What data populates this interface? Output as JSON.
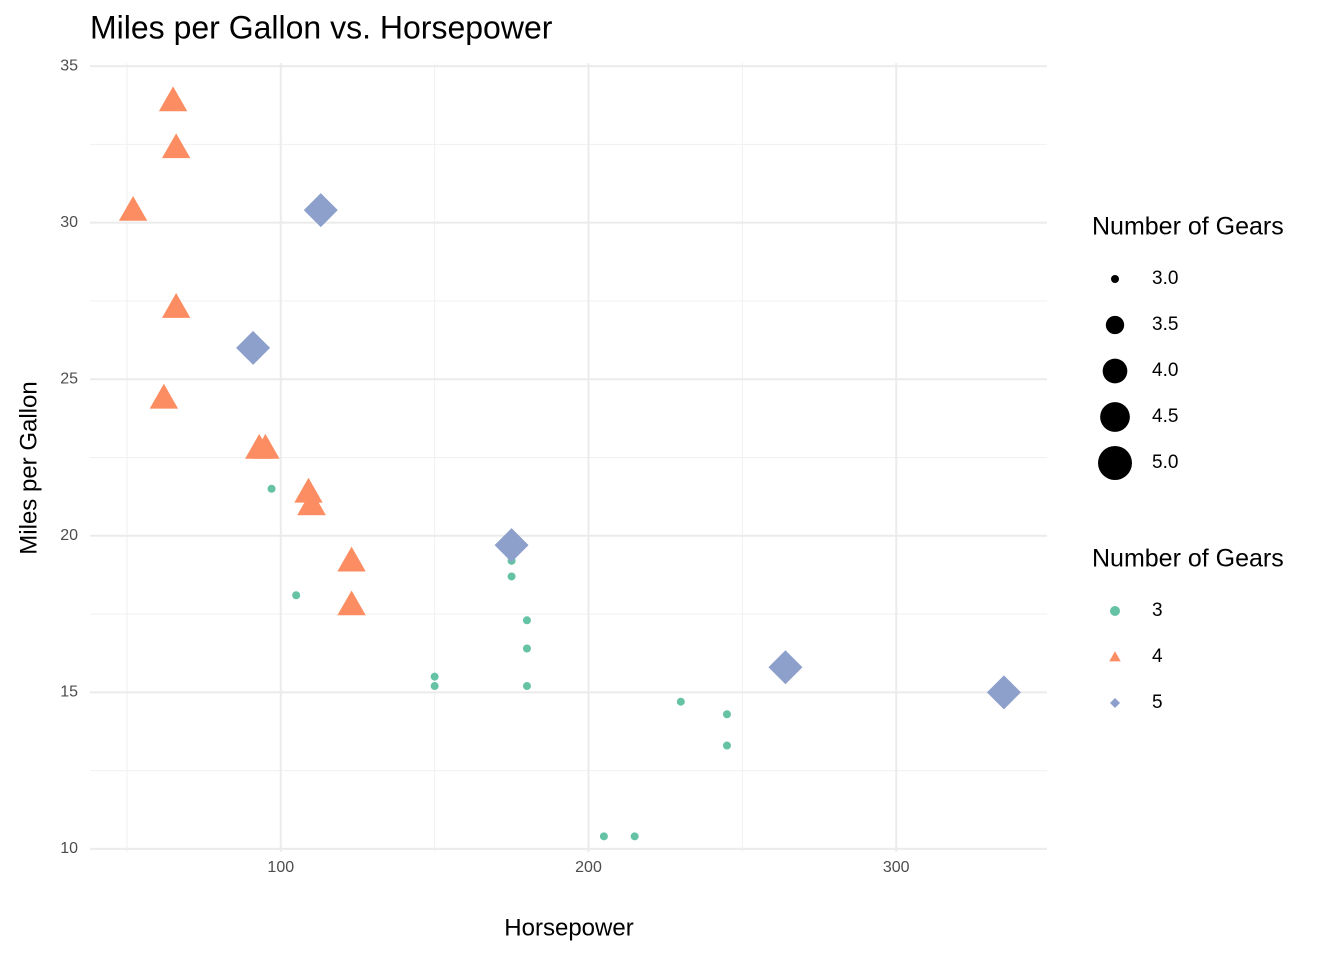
{
  "chart_data": {
    "type": "scatter",
    "title": "Miles per Gallon vs. Horsepower",
    "x_label": "Horsepower",
    "y_label": "Miles per Gallon",
    "xlim": [
      38,
      349
    ],
    "ylim": [
      9.9,
      35.1
    ],
    "xticks": [
      100,
      200,
      300
    ],
    "yticks": [
      10,
      15,
      20,
      25,
      30,
      35
    ],
    "xminor": [
      50,
      150,
      250
    ],
    "yminor": [
      12.5,
      17.5,
      22.5,
      27.5,
      32.5
    ],
    "grid": true,
    "legend_position": "right",
    "legend_title": "Number of Gears",
    "size_legend": {
      "title": "Number of Gears",
      "breaks": [
        {
          "value": 3,
          "label": "3.0"
        },
        {
          "value": 3.5,
          "label": "3.5"
        },
        {
          "value": 4,
          "label": "4.0"
        },
        {
          "value": 4.5,
          "label": "4.5"
        },
        {
          "value": 5,
          "label": "5.0"
        }
      ]
    },
    "series": [
      {
        "name": "3",
        "color": "#66c2a5",
        "shape": "circle",
        "size": 3,
        "x": [
          110,
          175,
          105,
          245,
          180,
          180,
          180,
          205,
          215,
          230,
          97,
          150,
          150,
          245,
          175
        ],
        "values": [
          21.4,
          18.7,
          18.1,
          14.3,
          16.4,
          17.3,
          15.2,
          10.4,
          10.4,
          14.7,
          21.5,
          15.5,
          15.2,
          13.3,
          19.2
        ]
      },
      {
        "name": "4",
        "color": "#fc8d62",
        "shape": "triangle",
        "size": 4,
        "x": [
          110,
          110,
          93,
          62,
          95,
          123,
          123,
          66,
          52,
          65,
          66,
          109
        ],
        "values": [
          21.0,
          21.0,
          22.8,
          24.4,
          22.8,
          19.2,
          17.8,
          32.4,
          30.4,
          33.9,
          27.3,
          21.4
        ]
      },
      {
        "name": "5",
        "color": "#8da0cb",
        "shape": "diamond",
        "size": 5,
        "x": [
          91,
          113,
          264,
          175,
          335
        ],
        "values": [
          26.0,
          30.4,
          15.8,
          19.7,
          15.0
        ]
      }
    ]
  }
}
